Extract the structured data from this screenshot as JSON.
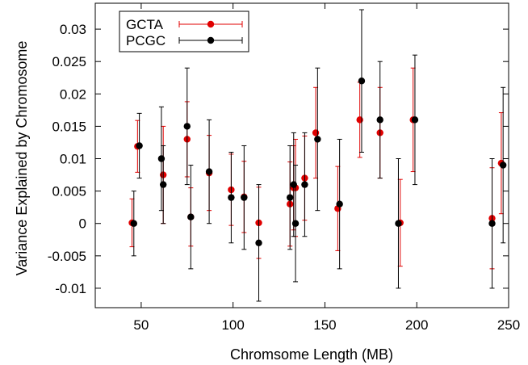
{
  "chart_data": {
    "type": "scatter",
    "xlabel": "Chromsome Length (MB)",
    "ylabel": "Variance Explained by Chromosome",
    "xlim": [
      25,
      250
    ],
    "ylim": [
      -0.013,
      0.034
    ],
    "xticks": [
      50,
      100,
      150,
      200,
      250
    ],
    "yticks": [
      -0.01,
      -0.005,
      0,
      0.005,
      0.01,
      0.015,
      0.02,
      0.025,
      0.03
    ],
    "xtick_labels": [
      "50",
      "100",
      "150",
      "200",
      "250"
    ],
    "ytick_labels": [
      "-0.01",
      "-0.005",
      "0",
      "0.005",
      "0.01",
      "0.015",
      "0.02",
      "0.025",
      "0.03"
    ],
    "grid": false,
    "legend_position": "top-left",
    "series": [
      {
        "name": "GCTA",
        "color": "#e00000",
        "points": [
          {
            "x": 45,
            "y": 0.0001,
            "err": 0.0037
          },
          {
            "x": 48,
            "y": 0.0119,
            "err": 0.004
          },
          {
            "x": 62,
            "y": 0.0075,
            "err": 0.0075
          },
          {
            "x": 75,
            "y": 0.013,
            "err": 0.0058
          },
          {
            "x": 77,
            "y": 0.001,
            "err": 0.0045
          },
          {
            "x": 87,
            "y": 0.0078,
            "err": 0.0058
          },
          {
            "x": 99,
            "y": 0.0052,
            "err": 0.0055
          },
          {
            "x": 106,
            "y": 0.0041,
            "err": 0.0055
          },
          {
            "x": 114,
            "y": 0.0001,
            "err": 0.0055
          },
          {
            "x": 131,
            "y": 0.003,
            "err": 0.0065
          },
          {
            "x": 133,
            "y": 0.0055,
            "err": 0.0065
          },
          {
            "x": 134,
            "y": 0.0055,
            "err": 0.0075
          },
          {
            "x": 139,
            "y": 0.007,
            "err": 0.0065
          },
          {
            "x": 145,
            "y": 0.014,
            "err": 0.007
          },
          {
            "x": 157,
            "y": 0.0023,
            "err": 0.0065
          },
          {
            "x": 169,
            "y": 0.016,
            "err": 0.0058
          },
          {
            "x": 180,
            "y": 0.014,
            "err": 0.007
          },
          {
            "x": 191,
            "y": 0.0001,
            "err": 0.0067
          },
          {
            "x": 198,
            "y": 0.016,
            "err": 0.008
          },
          {
            "x": 241,
            "y": 0.0008,
            "err": 0.0078
          },
          {
            "x": 246,
            "y": 0.0093,
            "err": 0.0078
          }
        ]
      },
      {
        "name": "PCGC",
        "color": "#000000",
        "points": [
          {
            "x": 46,
            "y": 0.0,
            "err": 0.005
          },
          {
            "x": 49,
            "y": 0.012,
            "err": 0.005
          },
          {
            "x": 61,
            "y": 0.01,
            "err": 0.008
          },
          {
            "x": 62,
            "y": 0.006,
            "err": 0.006
          },
          {
            "x": 75,
            "y": 0.015,
            "err": 0.009
          },
          {
            "x": 77,
            "y": 0.001,
            "err": 0.008
          },
          {
            "x": 87,
            "y": 0.008,
            "err": 0.008
          },
          {
            "x": 99,
            "y": 0.004,
            "err": 0.007
          },
          {
            "x": 106,
            "y": 0.004,
            "err": 0.008
          },
          {
            "x": 114,
            "y": -0.003,
            "err": 0.009
          },
          {
            "x": 131,
            "y": 0.004,
            "err": 0.008
          },
          {
            "x": 133,
            "y": 0.006,
            "err": 0.008
          },
          {
            "x": 134,
            "y": 0.0,
            "err": 0.009
          },
          {
            "x": 139,
            "y": 0.006,
            "err": 0.008
          },
          {
            "x": 146,
            "y": 0.013,
            "err": 0.011
          },
          {
            "x": 158,
            "y": 0.003,
            "err": 0.01
          },
          {
            "x": 170,
            "y": 0.022,
            "err": 0.011
          },
          {
            "x": 180,
            "y": 0.016,
            "err": 0.009
          },
          {
            "x": 190,
            "y": 0.0,
            "err": 0.01
          },
          {
            "x": 199,
            "y": 0.016,
            "err": 0.01
          },
          {
            "x": 241,
            "y": 0.0,
            "err": 0.01
          },
          {
            "x": 247,
            "y": 0.009,
            "err": 0.012
          }
        ]
      }
    ]
  }
}
